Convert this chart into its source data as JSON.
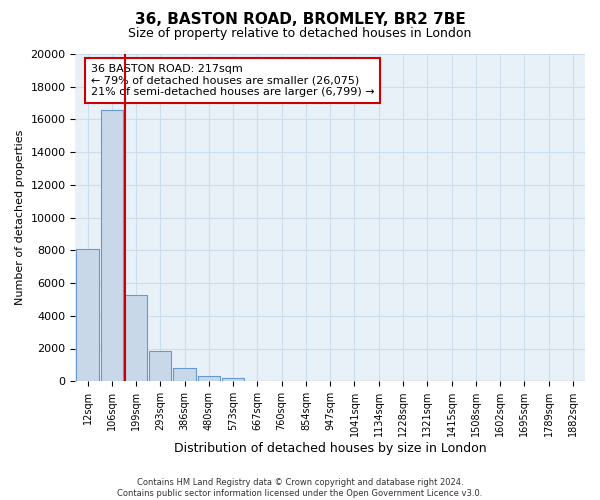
{
  "title": "36, BASTON ROAD, BROMLEY, BR2 7BE",
  "subtitle": "Size of property relative to detached houses in London",
  "xlabel": "Distribution of detached houses by size in London",
  "ylabel": "Number of detached properties",
  "bin_labels": [
    "12sqm",
    "106sqm",
    "199sqm",
    "293sqm",
    "386sqm",
    "480sqm",
    "573sqm",
    "667sqm",
    "760sqm",
    "854sqm",
    "947sqm",
    "1041sqm",
    "1134sqm",
    "1228sqm",
    "1321sqm",
    "1415sqm",
    "1508sqm",
    "1602sqm",
    "1695sqm",
    "1789sqm",
    "1882sqm"
  ],
  "bar_values": [
    8100,
    16600,
    5300,
    1850,
    800,
    300,
    200,
    0,
    0,
    0,
    0,
    0,
    0,
    0,
    0,
    0,
    0,
    0,
    0,
    0,
    0
  ],
  "bar_color": "#c8d8e8",
  "bar_edge_color": "#6699cc",
  "vline_pos": 1.55,
  "vline_color": "#cc0000",
  "annotation_title": "36 BASTON ROAD: 217sqm",
  "annotation_line1": "← 79% of detached houses are smaller (26,075)",
  "annotation_line2": "21% of semi-detached houses are larger (6,799) →",
  "annotation_box_color": "#cc0000",
  "ylim": [
    0,
    20000
  ],
  "yticks": [
    0,
    2000,
    4000,
    6000,
    8000,
    10000,
    12000,
    14000,
    16000,
    18000,
    20000
  ],
  "grid_color": "#ccddee",
  "background_color": "#e8f0f8",
  "footer_line1": "Contains HM Land Registry data © Crown copyright and database right 2024.",
  "footer_line2": "Contains public sector information licensed under the Open Government Licence v3.0."
}
